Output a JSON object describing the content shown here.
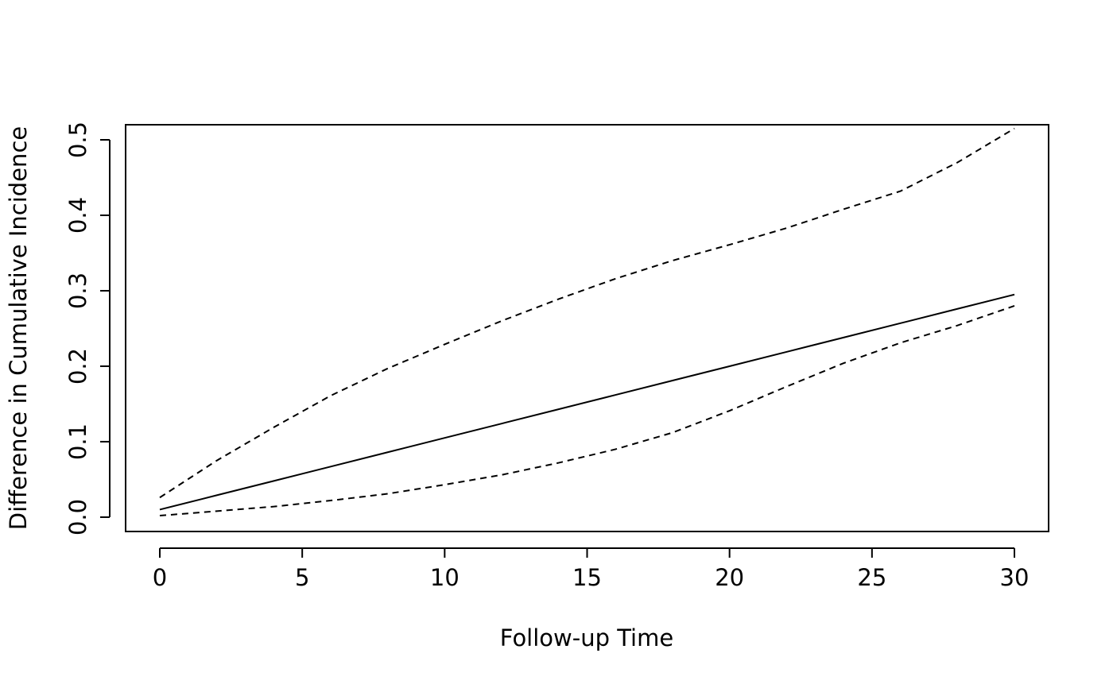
{
  "chart_data": {
    "type": "line",
    "x_label": "Follow-up Time",
    "y_label": "Difference in Cumulative Incidence",
    "x": [
      0,
      2,
      4,
      6,
      8,
      10,
      12,
      14,
      16,
      18,
      20,
      22,
      24,
      26,
      28,
      30
    ],
    "series": [
      {
        "color": "#000000",
        "linestyle": "solid",
        "values": [
          0.01,
          0.029,
          0.048,
          0.067,
          0.086,
          0.105,
          0.124,
          0.143,
          0.162,
          0.181,
          0.2,
          0.219,
          0.238,
          0.257,
          0.276,
          0.295
        ]
      },
      {
        "color": "#000000",
        "linestyle": "dashed",
        "values": [
          0.026,
          0.075,
          0.119,
          0.161,
          0.197,
          0.229,
          0.26,
          0.289,
          0.316,
          0.34,
          0.361,
          0.383,
          0.408,
          0.432,
          0.47,
          0.515
        ]
      },
      {
        "color": "#000000",
        "linestyle": "dashed",
        "values": [
          0.002,
          0.008,
          0.014,
          0.022,
          0.031,
          0.043,
          0.056,
          0.072,
          0.09,
          0.112,
          0.141,
          0.173,
          0.204,
          0.231,
          0.254,
          0.28
        ]
      }
    ],
    "xlim": [
      -1.2,
      31.2
    ],
    "xticks": [
      0,
      5,
      10,
      15,
      20,
      25,
      30
    ],
    "ylim": [
      -0.019,
      0.52
    ],
    "yticks": [
      {
        "value": 0,
        "label": "0.0"
      },
      0.1,
      0.2,
      0.3,
      0.4,
      0.5
    ],
    "grid": false
  }
}
